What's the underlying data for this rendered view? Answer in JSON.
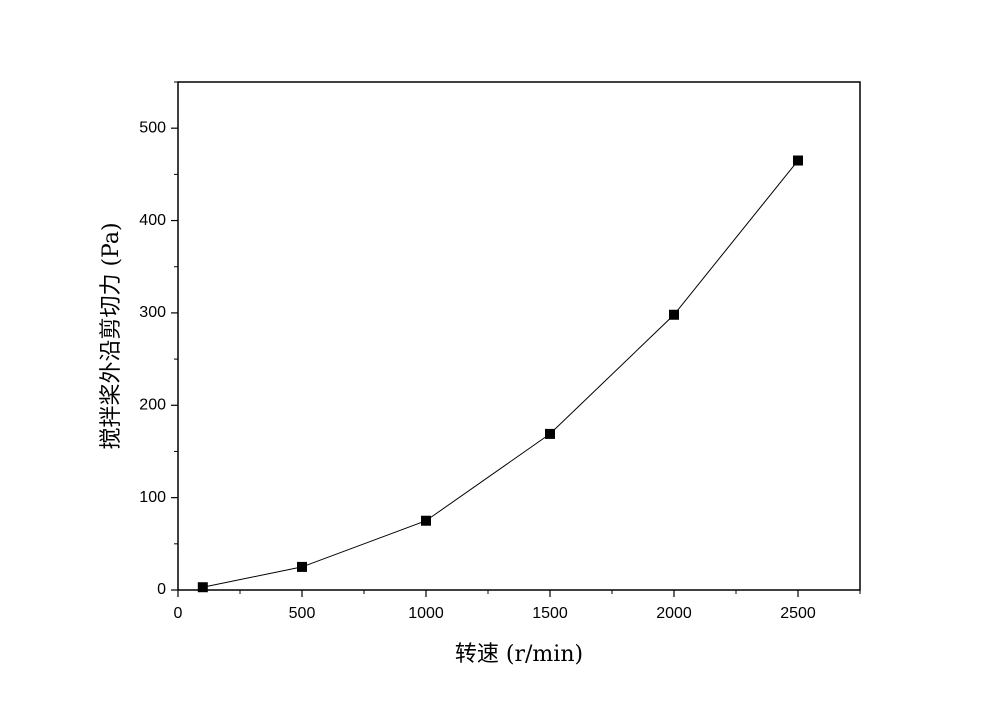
{
  "chart_data": {
    "type": "line",
    "x_label": "转速 (r/min)",
    "y_label": "搅拌桨外沿剪切力 (Pa)",
    "x": [
      100,
      500,
      1000,
      1500,
      2000,
      2500
    ],
    "series": [
      {
        "color": "#000000",
        "values": [
          3,
          25,
          75,
          169,
          298,
          465
        ]
      }
    ],
    "xlim": [
      0,
      2750
    ],
    "xticks": [
      0,
      500,
      1000,
      1500,
      2000,
      2500
    ],
    "ylim": [
      0,
      550
    ],
    "yticks": [
      0,
      100,
      200,
      300,
      400,
      500
    ],
    "grid": false
  }
}
